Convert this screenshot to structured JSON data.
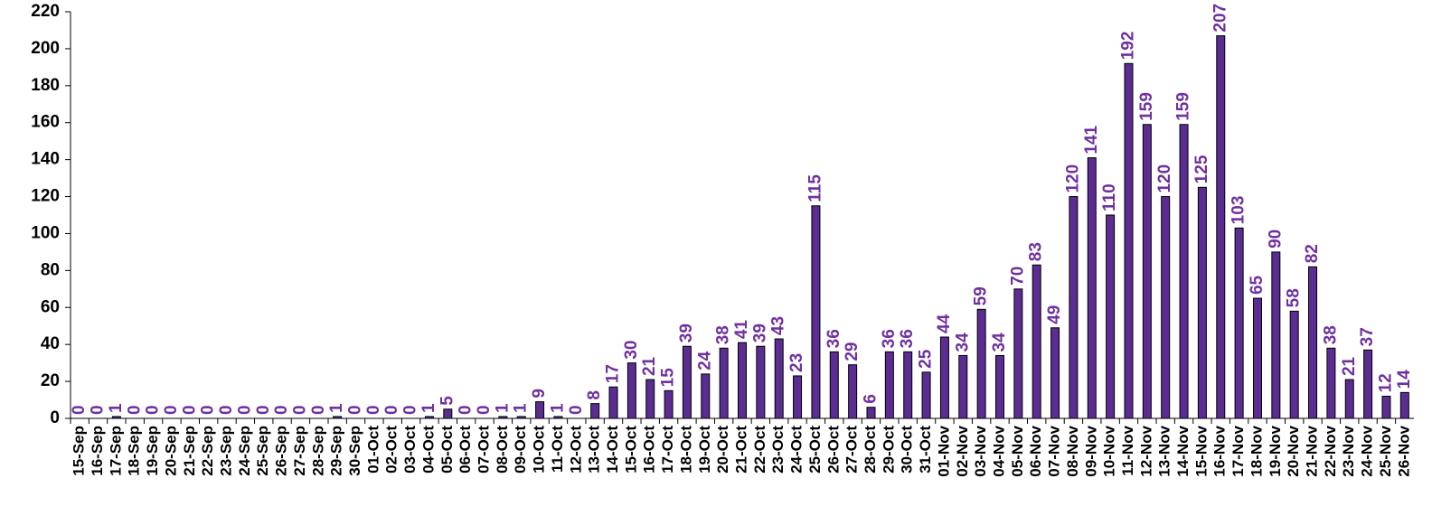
{
  "chart_data": {
    "type": "bar",
    "categories": [
      "15-Sep",
      "16-Sep",
      "17-Sep",
      "18-Sep",
      "19-Sep",
      "20-Sep",
      "21-Sep",
      "22-Sep",
      "23-Sep",
      "24-Sep",
      "25-Sep",
      "26-Sep",
      "27-Sep",
      "28-Sep",
      "29-Sep",
      "30-Sep",
      "01-Oct",
      "02-Oct",
      "03-Oct",
      "04-Oct",
      "05-Oct",
      "06-Oct",
      "07-Oct",
      "08-Oct",
      "09-Oct",
      "10-Oct",
      "11-Oct",
      "12-Oct",
      "13-Oct",
      "14-Oct",
      "15-Oct",
      "16-Oct",
      "17-Oct",
      "18-Oct",
      "19-Oct",
      "20-Oct",
      "21-Oct",
      "22-Oct",
      "23-Oct",
      "24-Oct",
      "25-Oct",
      "26-Oct",
      "27-Oct",
      "28-Oct",
      "29-Oct",
      "30-Oct",
      "31-Oct",
      "01-Nov",
      "02-Nov",
      "03-Nov",
      "04-Nov",
      "05-Nov",
      "06-Nov",
      "07-Nov",
      "08-Nov",
      "09-Nov",
      "10-Nov",
      "11-Nov",
      "12-Nov",
      "13-Nov",
      "14-Nov",
      "15-Nov",
      "16-Nov",
      "17-Nov",
      "18-Nov",
      "19-Nov",
      "20-Nov",
      "21-Nov",
      "22-Nov",
      "23-Nov",
      "24-Nov",
      "25-Nov",
      "26-Nov"
    ],
    "values": [
      0,
      0,
      1,
      0,
      0,
      0,
      0,
      0,
      0,
      0,
      0,
      0,
      0,
      0,
      1,
      0,
      0,
      0,
      0,
      1,
      5,
      0,
      0,
      1,
      1,
      9,
      1,
      0,
      8,
      17,
      30,
      21,
      15,
      39,
      24,
      38,
      41,
      39,
      43,
      23,
      115,
      36,
      29,
      6,
      36,
      36,
      25,
      44,
      34,
      59,
      34,
      70,
      83,
      49,
      120,
      141,
      110,
      192,
      159,
      120,
      159,
      125,
      207,
      103,
      65,
      90,
      58,
      82,
      38,
      21,
      37,
      12,
      14
    ],
    "color": "#5b2c91",
    "label_color": "#7030a0",
    "ylim": [
      0,
      220
    ],
    "yticks": [
      0,
      20,
      40,
      60,
      80,
      100,
      120,
      140,
      160,
      180,
      200,
      220
    ],
    "grid": false
  }
}
